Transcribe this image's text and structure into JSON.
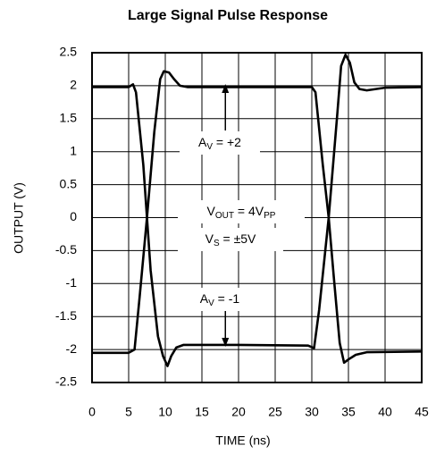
{
  "chart_data": {
    "type": "line",
    "title": "Large Signal Pulse Response",
    "x_label": "TIME (ns)",
    "y_label": "OUTPUT (V)",
    "xlim": [
      0,
      45
    ],
    "ylim": [
      -2.5,
      2.5
    ],
    "xticks": [
      0,
      5,
      10,
      15,
      20,
      25,
      30,
      35,
      40,
      45
    ],
    "yticks": [
      2.5,
      2,
      1.5,
      1,
      0.5,
      0,
      -0.5,
      -1,
      -1.5,
      -2,
      -2.5
    ],
    "grid": true,
    "series": [
      {
        "color": "#000000",
        "x": [
          0,
          5,
          5.6,
          6,
          7,
          7.5,
          8,
          9,
          9.7,
          10.3,
          10.8,
          11.5,
          12.5,
          20,
          29.5,
          30.3,
          31,
          32.3,
          33.5,
          34,
          34.6,
          35.2,
          35.8,
          36.5,
          37.5,
          40,
          45
        ],
        "values": [
          1.98,
          1.98,
          2.02,
          1.9,
          0.8,
          0,
          -0.8,
          -1.8,
          -2.1,
          -2.25,
          -2.1,
          -1.97,
          -1.93,
          -1.93,
          -1.94,
          -1.98,
          -1.4,
          0,
          1.6,
          2.3,
          2.47,
          2.35,
          2.05,
          1.95,
          1.93,
          1.97,
          1.98
        ]
      },
      {
        "color": "#000000",
        "x": [
          0,
          5,
          5.8,
          6.5,
          7.5,
          8.5,
          9.3,
          9.8,
          10.5,
          11.2,
          12,
          13,
          30,
          30.5,
          31.5,
          32.3,
          33,
          33.8,
          34.4,
          35,
          36,
          37.5,
          45
        ],
        "values": [
          -2.05,
          -2.05,
          -2.0,
          -1.2,
          0,
          1.3,
          2.1,
          2.22,
          2.2,
          2.1,
          2.0,
          1.98,
          1.98,
          1.9,
          0.8,
          0,
          -0.9,
          -1.9,
          -2.2,
          -2.15,
          -2.08,
          -2.04,
          -2.03
        ]
      }
    ],
    "annotations": [
      {
        "parts": [
          "A",
          "V",
          " = +2"
        ]
      },
      {
        "parts": [
          "V",
          "OUT",
          " = 4V",
          "PP"
        ]
      },
      {
        "parts": [
          "V",
          "S",
          " = ±5V"
        ]
      },
      {
        "parts": [
          "A",
          "V",
          " = -1"
        ]
      }
    ]
  }
}
